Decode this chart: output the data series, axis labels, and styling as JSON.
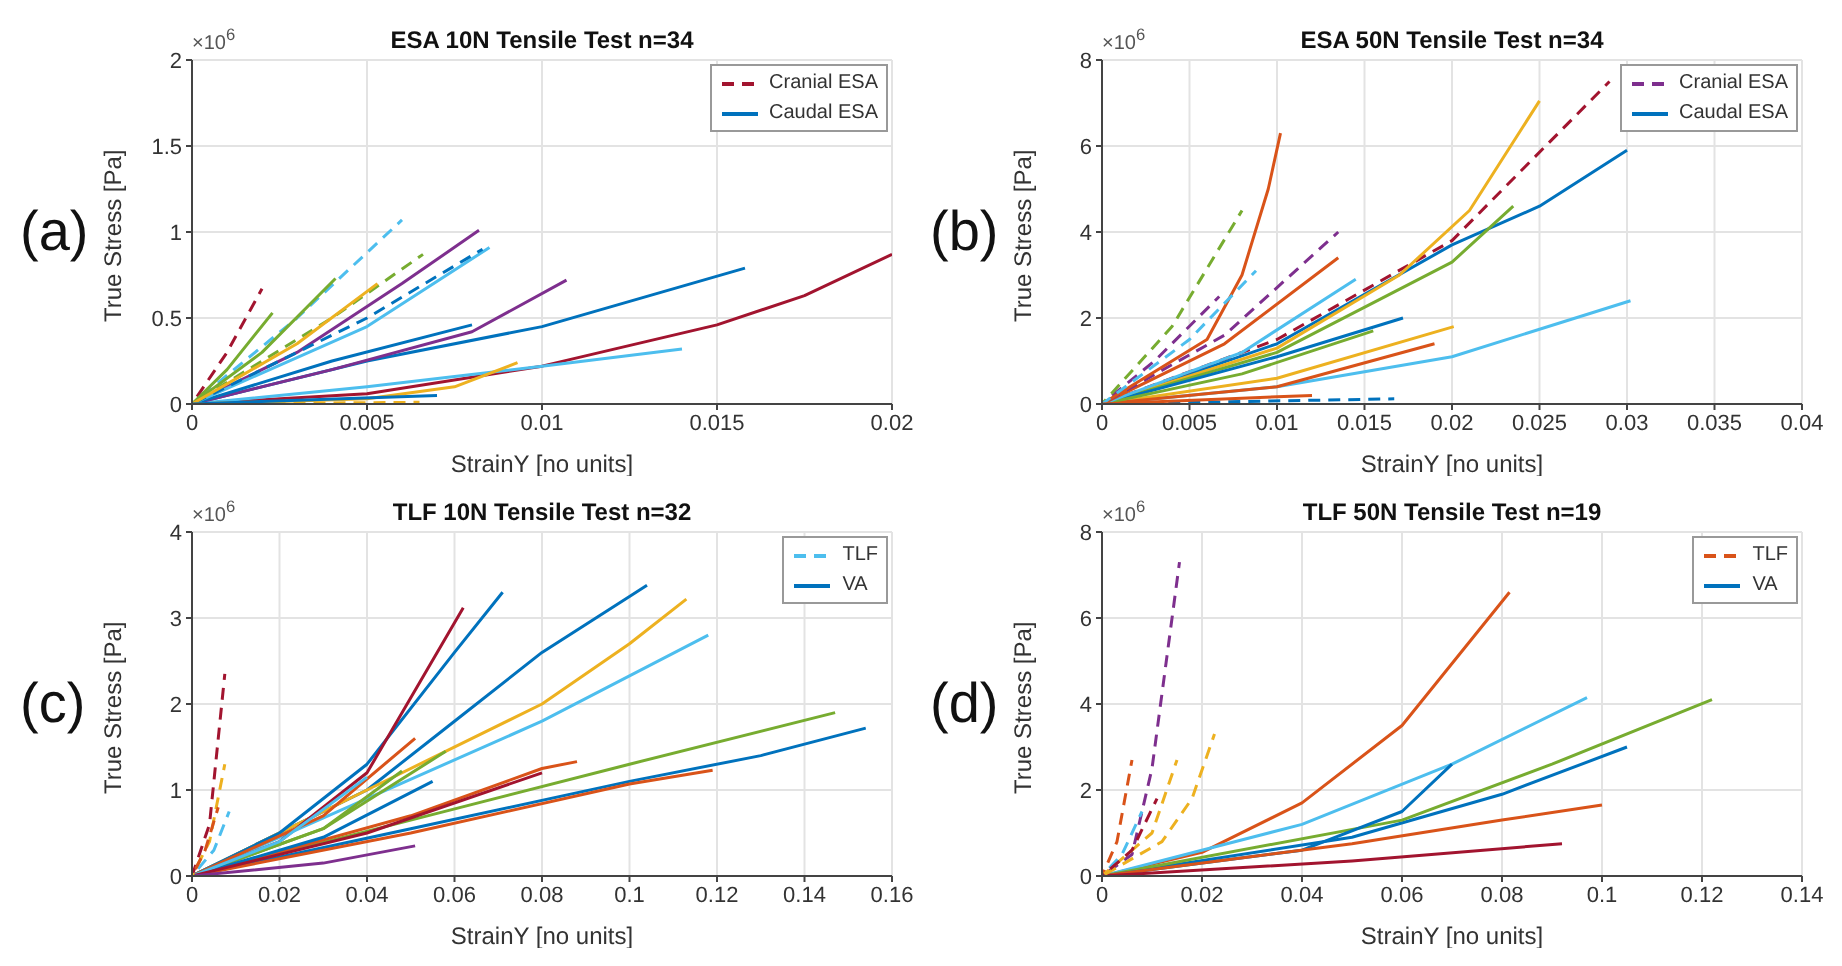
{
  "chart_data": [
    {
      "type": "line",
      "title": "ESA 10N Tensile Test n=34",
      "xlabel": "StrainY [no units]",
      "ylabel": "True Stress [Pa]",
      "annotations": [
        "(a)",
        "×10$^{6}$"
      ],
      "xlim": [
        0,
        0.02
      ],
      "xticks": [
        0,
        0.005,
        0.01,
        0.015,
        0.02
      ],
      "ylim": [
        0,
        2
      ],
      "yticks": [
        0,
        0.5,
        1,
        1.5,
        2
      ],
      "grid": true,
      "legend": "top right",
      "series": [
        {
          "name": "Cranial ESA",
          "color": "#a2142f",
          "line_style": "dashed",
          "x": [
            0,
            0.001,
            0.002
          ],
          "values": [
            0,
            0.3,
            0.67
          ]
        },
        {
          "name": "Caudal ESA",
          "color": "#0072bd",
          "line_style": "solid",
          "x": [
            0,
            0.005,
            0.01,
            0.0158
          ],
          "values": [
            0,
            0.25,
            0.45,
            0.79
          ]
        },
        {
          "color": "#a2142f",
          "line_style": "solid",
          "x": [
            0,
            0.005,
            0.01,
            0.015,
            0.0175,
            0.02
          ],
          "values": [
            0,
            0.06,
            0.22,
            0.46,
            0.63,
            0.87
          ]
        },
        {
          "color": "#4dbeee",
          "line_style": "solid",
          "x": [
            0,
            0.005,
            0.01,
            0.014
          ],
          "values": [
            0,
            0.1,
            0.22,
            0.32
          ]
        },
        {
          "color": "#7e2f8e",
          "line_style": "solid",
          "x": [
            0,
            0.004,
            0.008,
            0.0107
          ],
          "values": [
            0,
            0.2,
            0.42,
            0.72
          ]
        },
        {
          "color": "#0072bd",
          "line_style": "solid",
          "x": [
            0,
            0.004,
            0.008
          ],
          "values": [
            0,
            0.25,
            0.46
          ]
        },
        {
          "color": "#7e2f8e",
          "line_style": "solid",
          "x": [
            0,
            0.003,
            0.006,
            0.0082
          ],
          "values": [
            0,
            0.3,
            0.7,
            1.01
          ]
        },
        {
          "color": "#4dbeee",
          "line_style": "solid",
          "x": [
            0,
            0.005,
            0.0085
          ],
          "values": [
            0,
            0.45,
            0.91
          ]
        },
        {
          "color": "#0072bd",
          "line_style": "dashed",
          "x": [
            0,
            0.005,
            0.0083
          ],
          "values": [
            0,
            0.5,
            0.9
          ]
        },
        {
          "color": "#4dbeee",
          "line_style": "dashed",
          "x": [
            0,
            0.003,
            0.006
          ],
          "values": [
            0,
            0.5,
            1.07
          ]
        },
        {
          "color": "#77ac30",
          "line_style": "dashed",
          "x": [
            0,
            0.004,
            0.0066
          ],
          "values": [
            0,
            0.5,
            0.87
          ]
        },
        {
          "color": "#77ac30",
          "line_style": "solid",
          "x": [
            0,
            0.002,
            0.0041
          ],
          "values": [
            0,
            0.3,
            0.73
          ]
        },
        {
          "color": "#77ac30",
          "line_style": "solid",
          "x": [
            0,
            0.001,
            0.0023
          ],
          "values": [
            0,
            0.2,
            0.53
          ]
        },
        {
          "color": "#edb120",
          "line_style": "solid",
          "x": [
            0,
            0.003,
            0.0053
          ],
          "values": [
            0,
            0.35,
            0.7
          ]
        },
        {
          "color": "#edb120",
          "line_style": "solid",
          "x": [
            0,
            0.005,
            0.0075,
            0.0093
          ],
          "values": [
            0,
            0.03,
            0.1,
            0.24
          ]
        },
        {
          "color": "#edb120",
          "line_style": "dashed",
          "x": [
            0,
            0.0065
          ],
          "values": [
            0,
            0.01
          ]
        },
        {
          "color": "#0072bd",
          "line_style": "solid",
          "x": [
            0,
            0.007
          ],
          "values": [
            0,
            0.05
          ]
        }
      ]
    },
    {
      "type": "line",
      "title": "ESA 50N Tensile Test n=34",
      "xlabel": "StrainY [no units]",
      "ylabel": "True Stress [Pa]",
      "annotations": [
        "(b)",
        "×10$^{6}$"
      ],
      "xlim": [
        0,
        0.04
      ],
      "xticks": [
        0,
        0.005,
        0.01,
        0.015,
        0.02,
        0.025,
        0.03,
        0.035,
        0.04
      ],
      "ylim": [
        0,
        8
      ],
      "yticks": [
        0,
        2,
        4,
        6,
        8
      ],
      "grid": true,
      "legend": "top right",
      "series": [
        {
          "name": "Cranial ESA",
          "color": "#7e2f8e",
          "line_style": "dashed",
          "x": [
            0,
            0.003,
            0.0067
          ],
          "values": [
            0,
            1,
            2.5
          ]
        },
        {
          "name": "Caudal ESA",
          "color": "#0072bd",
          "line_style": "solid",
          "x": [
            0,
            0.01,
            0.02,
            0.025,
            0.03
          ],
          "values": [
            0,
            1.4,
            3.7,
            4.6,
            5.9
          ]
        },
        {
          "color": "#a2142f",
          "line_style": "dashed",
          "x": [
            0,
            0.01,
            0.02,
            0.029
          ],
          "values": [
            0,
            1.5,
            3.8,
            7.5
          ]
        },
        {
          "color": "#edb120",
          "line_style": "solid",
          "x": [
            0,
            0.01,
            0.017,
            0.021,
            0.025
          ],
          "values": [
            0,
            1.3,
            3,
            4.5,
            7.05
          ]
        },
        {
          "color": "#77ac30",
          "line_style": "solid",
          "x": [
            0,
            0.01,
            0.02,
            0.0235
          ],
          "values": [
            0,
            1.2,
            3.3,
            4.6
          ]
        },
        {
          "color": "#4dbeee",
          "line_style": "solid",
          "x": [
            0,
            0.01,
            0.02,
            0.0302
          ],
          "values": [
            0,
            0.4,
            1.1,
            2.4
          ]
        },
        {
          "color": "#edb120",
          "line_style": "solid",
          "x": [
            0,
            0.01,
            0.0201
          ],
          "values": [
            0,
            0.6,
            1.8
          ]
        },
        {
          "color": "#d95319",
          "line_style": "solid",
          "x": [
            0,
            0.01,
            0.019
          ],
          "values": [
            0,
            0.4,
            1.4
          ]
        },
        {
          "color": "#0072bd",
          "line_style": "solid",
          "x": [
            0,
            0.01,
            0.0172
          ],
          "values": [
            0,
            1.1,
            2
          ]
        },
        {
          "color": "#77ac30",
          "line_style": "solid",
          "x": [
            0,
            0.008,
            0.0155
          ],
          "values": [
            0,
            0.7,
            1.7
          ]
        },
        {
          "color": "#4dbeee",
          "line_style": "solid",
          "x": [
            0,
            0.008,
            0.0145
          ],
          "values": [
            0,
            1.2,
            2.9
          ]
        },
        {
          "color": "#d95319",
          "line_style": "solid",
          "x": [
            0,
            0.007,
            0.0135
          ],
          "values": [
            0,
            1.4,
            3.4
          ]
        },
        {
          "color": "#7e2f8e",
          "line_style": "dashed",
          "x": [
            0,
            0.007,
            0.0135
          ],
          "values": [
            0,
            1.6,
            4
          ]
        },
        {
          "color": "#d95319",
          "line_style": "solid",
          "x": [
            0,
            0.006,
            0.008,
            0.0095,
            0.0102
          ],
          "values": [
            0,
            1.5,
            3,
            5,
            6.3
          ]
        },
        {
          "color": "#77ac30",
          "line_style": "dashed",
          "x": [
            0,
            0.004,
            0.008
          ],
          "values": [
            0,
            1.8,
            4.5
          ]
        },
        {
          "color": "#4dbeee",
          "line_style": "dashed",
          "x": [
            0,
            0.005,
            0.0088
          ],
          "values": [
            0,
            1.5,
            3.1
          ]
        },
        {
          "color": "#0072bd",
          "line_style": "dashed",
          "x": [
            0,
            0.0167
          ],
          "values": [
            0,
            0.12
          ]
        },
        {
          "color": "#d95319",
          "line_style": "solid",
          "x": [
            0,
            0.012
          ],
          "values": [
            0,
            0.2
          ]
        }
      ]
    },
    {
      "type": "line",
      "title": "TLF 10N Tensile Test n=32",
      "xlabel": "StrainY [no units]",
      "ylabel": "True Stress [Pa]",
      "annotations": [
        "(c)",
        "×10$^{6}$"
      ],
      "xlim": [
        0,
        0.16
      ],
      "xticks": [
        0,
        0.02,
        0.04,
        0.06,
        0.08,
        0.1,
        0.12,
        0.14,
        0.16
      ],
      "ylim": [
        0,
        4
      ],
      "yticks": [
        0,
        1,
        2,
        3,
        4
      ],
      "grid": true,
      "legend": "top right",
      "series": [
        {
          "name": "TLF",
          "color": "#4dbeee",
          "line_style": "dashed",
          "x": [
            0,
            0.005,
            0.0085
          ],
          "values": [
            0,
            0.3,
            0.75
          ]
        },
        {
          "name": "VA",
          "color": "#0072bd",
          "line_style": "solid",
          "x": [
            0,
            0.05,
            0.1,
            0.13,
            0.154
          ],
          "values": [
            0,
            0.55,
            1.1,
            1.4,
            1.72
          ]
        },
        {
          "color": "#77ac30",
          "line_style": "solid",
          "x": [
            0,
            0.05,
            0.1,
            0.147
          ],
          "values": [
            0,
            0.65,
            1.3,
            1.9
          ]
        },
        {
          "color": "#d95319",
          "line_style": "solid",
          "x": [
            0,
            0.05,
            0.1,
            0.119
          ],
          "values": [
            0,
            0.5,
            1.07,
            1.23
          ]
        },
        {
          "color": "#d95319",
          "line_style": "solid",
          "x": [
            0,
            0.05,
            0.08,
            0.088
          ],
          "values": [
            0,
            0.7,
            1.25,
            1.33
          ]
        },
        {
          "color": "#0072bd",
          "line_style": "solid",
          "x": [
            0,
            0.04,
            0.06,
            0.08,
            0.1,
            0.104
          ],
          "values": [
            0,
            1,
            1.8,
            2.6,
            3.25,
            3.38
          ]
        },
        {
          "color": "#edb120",
          "line_style": "solid",
          "x": [
            0,
            0.04,
            0.08,
            0.1,
            0.113
          ],
          "values": [
            0,
            1,
            2,
            2.7,
            3.22
          ]
        },
        {
          "color": "#4dbeee",
          "line_style": "solid",
          "x": [
            0,
            0.04,
            0.08,
            0.118
          ],
          "values": [
            0,
            0.9,
            1.8,
            2.8
          ]
        },
        {
          "color": "#0072bd",
          "line_style": "solid",
          "x": [
            0,
            0.02,
            0.04,
            0.06,
            0.071
          ],
          "values": [
            0,
            0.5,
            1.3,
            2.6,
            3.3
          ]
        },
        {
          "color": "#a2142f",
          "line_style": "solid",
          "x": [
            0,
            0.02,
            0.04,
            0.062
          ],
          "values": [
            0,
            0.4,
            1.2,
            3.12
          ]
        },
        {
          "color": "#d95319",
          "line_style": "solid",
          "x": [
            0,
            0.03,
            0.051
          ],
          "values": [
            0,
            0.7,
            1.6
          ]
        },
        {
          "color": "#77ac30",
          "line_style": "solid",
          "x": [
            0,
            0.03,
            0.058
          ],
          "values": [
            0,
            0.55,
            1.45
          ]
        },
        {
          "color": "#77ac30",
          "line_style": "solid",
          "x": [
            0,
            0.03,
            0.048
          ],
          "values": [
            0,
            0.55,
            1.22
          ]
        },
        {
          "color": "#0072bd",
          "line_style": "solid",
          "x": [
            0,
            0.03,
            0.055
          ],
          "values": [
            0,
            0.45,
            1.1
          ]
        },
        {
          "color": "#4dbeee",
          "line_style": "solid",
          "x": [
            0,
            0.02,
            0.04
          ],
          "values": [
            0,
            0.4,
            1.15
          ]
        },
        {
          "color": "#a2142f",
          "line_style": "solid",
          "x": [
            0,
            0.04,
            0.08
          ],
          "values": [
            0,
            0.5,
            1.2
          ]
        },
        {
          "color": "#7e2f8e",
          "line_style": "solid",
          "x": [
            0,
            0.03,
            0.051
          ],
          "values": [
            0,
            0.15,
            0.35
          ]
        },
        {
          "color": "#a2142f",
          "line_style": "dashed",
          "x": [
            0,
            0.004,
            0.0075
          ],
          "values": [
            0,
            0.6,
            2.35
          ]
        },
        {
          "color": "#edb120",
          "line_style": "dashed",
          "x": [
            0,
            0.004,
            0.0075
          ],
          "values": [
            0,
            0.4,
            1.3
          ]
        },
        {
          "color": "#d95319",
          "line_style": "dashed",
          "x": [
            0,
            0.003,
            0.006
          ],
          "values": [
            0,
            0.3,
            0.8
          ]
        }
      ]
    },
    {
      "type": "line",
      "title": "TLF 50N Tensile Test n=19",
      "xlabel": "StrainY [no units]",
      "ylabel": "True Stress [Pa]",
      "annotations": [
        "(d)",
        "×10$^{6}$"
      ],
      "xlim": [
        0,
        0.14
      ],
      "xticks": [
        0,
        0.02,
        0.04,
        0.06,
        0.08,
        0.1,
        0.12,
        0.14
      ],
      "ylim": [
        0,
        8
      ],
      "yticks": [
        0,
        2,
        4,
        6,
        8
      ],
      "grid": true,
      "legend": "top right",
      "series": [
        {
          "name": "TLF",
          "color": "#d95319",
          "line_style": "dashed",
          "x": [
            0,
            0.003,
            0.006
          ],
          "values": [
            0,
            0.8,
            2.7
          ]
        },
        {
          "name": "VA",
          "color": "#0072bd",
          "line_style": "solid",
          "x": [
            0,
            0.05,
            0.08,
            0.105
          ],
          "values": [
            0,
            0.9,
            1.9,
            3
          ]
        },
        {
          "color": "#d95319",
          "line_style": "solid",
          "x": [
            0,
            0.02,
            0.04,
            0.06,
            0.0815
          ],
          "values": [
            0,
            0.55,
            1.7,
            3.5,
            6.6
          ]
        },
        {
          "color": "#4dbeee",
          "line_style": "solid",
          "x": [
            0,
            0.04,
            0.07,
            0.097
          ],
          "values": [
            0,
            1.2,
            2.6,
            4.15
          ]
        },
        {
          "color": "#77ac30",
          "line_style": "solid",
          "x": [
            0,
            0.06,
            0.09,
            0.122
          ],
          "values": [
            0,
            1.3,
            2.6,
            4.1
          ]
        },
        {
          "color": "#0072bd",
          "line_style": "solid",
          "x": [
            0,
            0.04,
            0.06,
            0.07
          ],
          "values": [
            0,
            0.6,
            1.5,
            2.6
          ]
        },
        {
          "color": "#d95319",
          "line_style": "solid",
          "x": [
            0,
            0.05,
            0.08,
            0.1
          ],
          "values": [
            0,
            0.75,
            1.3,
            1.65
          ]
        },
        {
          "color": "#a2142f",
          "line_style": "solid",
          "x": [
            0,
            0.05,
            0.092
          ],
          "values": [
            0,
            0.35,
            0.75
          ]
        },
        {
          "color": "#7e2f8e",
          "line_style": "dashed",
          "x": [
            0,
            0.006,
            0.01,
            0.0155
          ],
          "values": [
            0,
            0.5,
            2.5,
            7.3
          ]
        },
        {
          "color": "#edb120",
          "line_style": "dashed",
          "x": [
            0,
            0.012,
            0.018,
            0.0225
          ],
          "values": [
            0,
            0.8,
            1.8,
            3.3
          ]
        },
        {
          "color": "#edb120",
          "line_style": "dashed",
          "x": [
            0,
            0.01,
            0.015
          ],
          "values": [
            0,
            1,
            2.7
          ]
        },
        {
          "color": "#4dbeee",
          "line_style": "dashed",
          "x": [
            0,
            0.004,
            0.008
          ],
          "values": [
            0,
            0.5,
            1.5
          ]
        },
        {
          "color": "#a2142f",
          "line_style": "dashed",
          "x": [
            0,
            0.006,
            0.011
          ],
          "values": [
            0,
            0.6,
            1.8
          ]
        }
      ]
    }
  ]
}
